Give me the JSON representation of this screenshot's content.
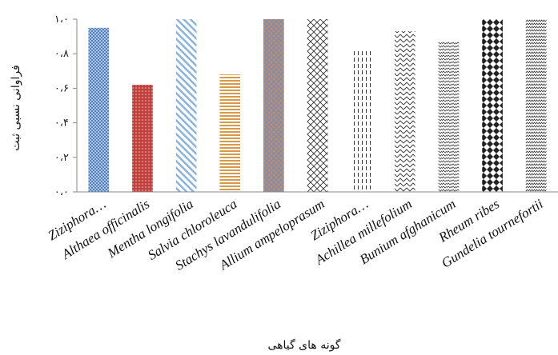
{
  "chart_data": {
    "type": "bar",
    "ylabel": "فراوانی نسبی ثبت",
    "xlabel": "گونه های گیاهی",
    "ylim": [
      0,
      1
    ],
    "yticks": [
      "۰،۰",
      "۰،۲",
      "۰،۴",
      "۰،۶",
      "۰،۸",
      "۱،۰"
    ],
    "categories": [
      "Ziziphora…",
      "Althaea officinalis",
      "Mentha longifolia",
      "Salvia chloroleuca",
      "Stachys lavandulifolia",
      "Allium ampeloprasum",
      "Ziziphora…",
      "Achillea millefolium",
      "Bunium afghanicum",
      "Rheum ribes",
      "Gundelia tournefortii"
    ],
    "values": [
      0.95,
      0.62,
      1.0,
      0.68,
      1.0,
      1.0,
      0.82,
      0.93,
      0.87,
      1.0,
      1.0
    ],
    "colors": [
      "#4f7fc0",
      "#c0413d",
      "#8ab4dc",
      "#d89a4a",
      "#e07b39",
      "#333333",
      "#333333",
      "#333333",
      "#333333",
      "#222222",
      "#333333"
    ],
    "grid": false
  }
}
